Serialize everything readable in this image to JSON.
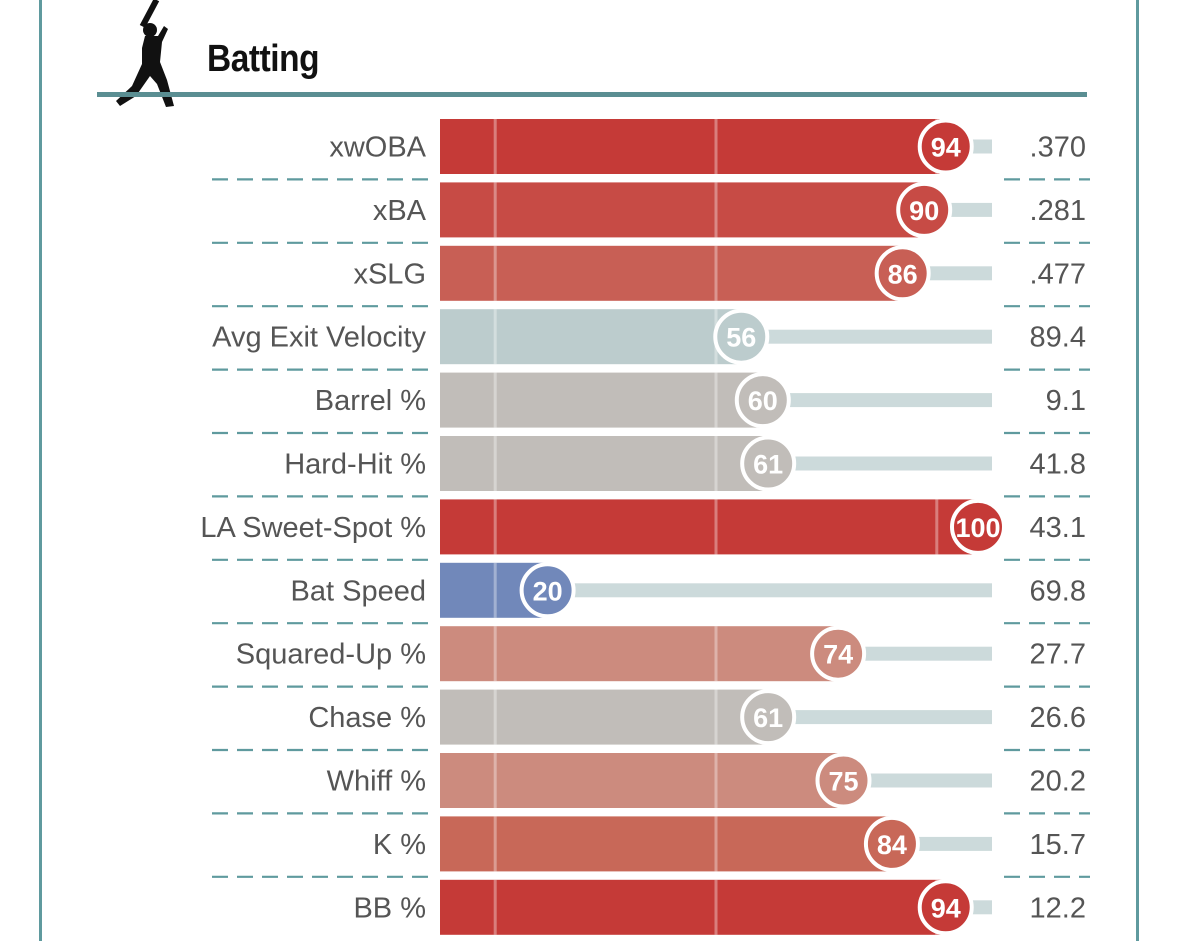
{
  "section": {
    "title": "Batting",
    "icon": "batter-silhouette-icon"
  },
  "chart_data": {
    "type": "bar",
    "orientation": "horizontal",
    "title": "Batting",
    "xlim": [
      0,
      100
    ],
    "value_kind": "percentile",
    "categories": [
      "xwOBA",
      "xBA",
      "xSLG",
      "Avg Exit Velocity",
      "Barrel %",
      "Hard-Hit %",
      "LA Sweet-Spot %",
      "Bat Speed",
      "Squared-Up %",
      "Chase %",
      "Whiff %",
      "K %",
      "BB %"
    ],
    "values": [
      94,
      90,
      86,
      56,
      60,
      61,
      100,
      20,
      74,
      61,
      75,
      84,
      94
    ],
    "stat_values": [
      ".370",
      ".281",
      ".477",
      "89.4",
      "9.1",
      "41.8",
      "43.1",
      "69.8",
      "27.7",
      "26.6",
      "20.2",
      "15.7",
      "12.2"
    ],
    "colors": [
      "#c53a37",
      "#c74b45",
      "#c85f55",
      "#bccccd",
      "#c1bdb9",
      "#c1bdb9",
      "#c53a37",
      "#7188ba",
      "#cc8b7e",
      "#c1bdb9",
      "#cc8b7e",
      "#c86858",
      "#c53a37"
    ],
    "track_color": "#ccdadb",
    "grid": true
  }
}
